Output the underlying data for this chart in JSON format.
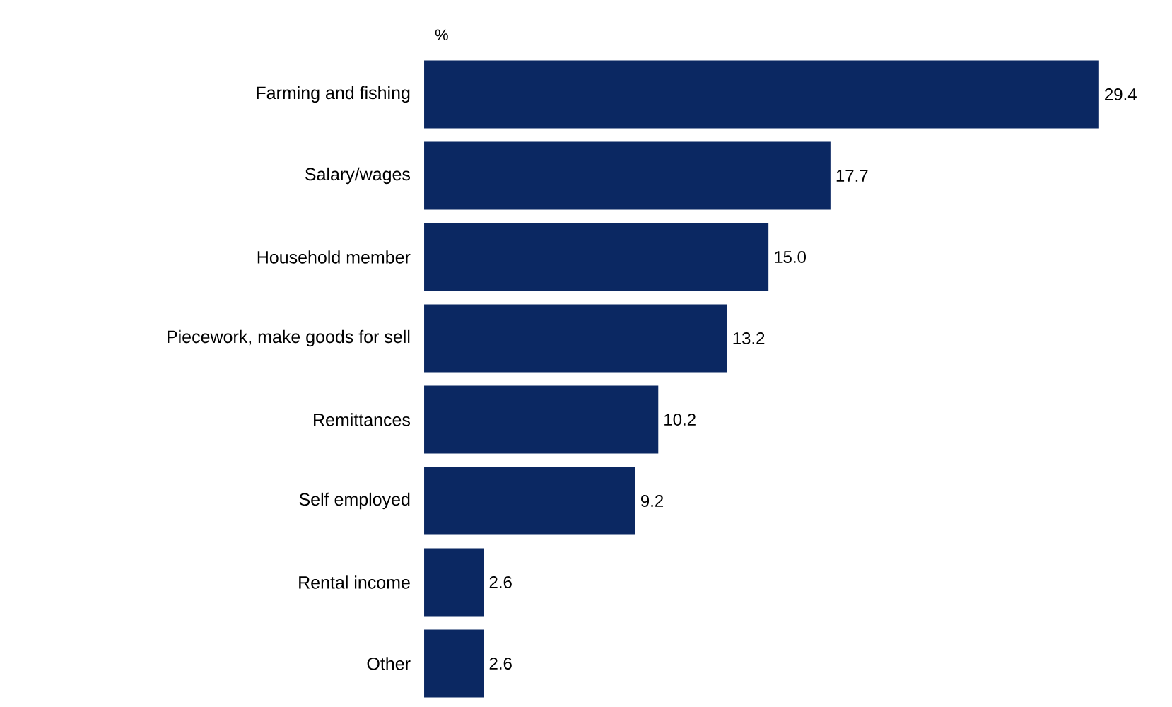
{
  "chart_data": {
    "type": "bar",
    "orientation": "horizontal",
    "xlabel": "%",
    "categories": [
      "Farming and fishing",
      "Salary/wages",
      "Household member",
      "Piecework, make goods for sell",
      "Remittances",
      "Self employed",
      "Rental income",
      "Other"
    ],
    "values": [
      29.4,
      17.7,
      15.0,
      13.2,
      10.2,
      9.2,
      2.6,
      2.6
    ],
    "value_labels": [
      "29.4",
      "17.7",
      "15.0",
      "13.2",
      "10.2",
      "9.2",
      "2.6",
      "2.6"
    ],
    "color": "#0b2862",
    "tick_labels": "y"
  }
}
